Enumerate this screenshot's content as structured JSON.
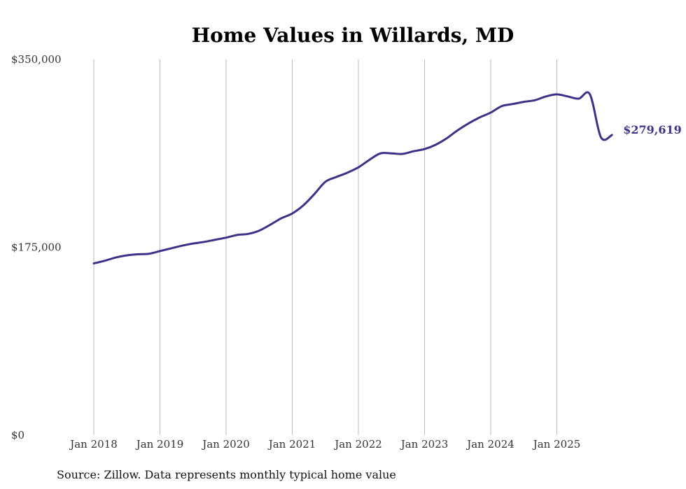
{
  "chart_data": {
    "type": "line",
    "title": "Home Values in Willards, MD",
    "xlabel": "",
    "ylabel": "",
    "ylim": [
      0,
      350000
    ],
    "grid": "vertical",
    "y_ticks": [
      {
        "value": 0,
        "label": "$0"
      },
      {
        "value": 175000,
        "label": "$175,000"
      },
      {
        "value": 350000,
        "label": "$350,000"
      }
    ],
    "x_ticks": [
      {
        "value": 2018,
        "label": "Jan 2018"
      },
      {
        "value": 2019,
        "label": "Jan 2019"
      },
      {
        "value": 2020,
        "label": "Jan 2020"
      },
      {
        "value": 2021,
        "label": "Jan 2021"
      },
      {
        "value": 2022,
        "label": "Jan 2022"
      },
      {
        "value": 2023,
        "label": "Jan 2023"
      },
      {
        "value": 2024,
        "label": "Jan 2024"
      },
      {
        "value": 2025,
        "label": "Jan 2025"
      }
    ],
    "xlim": [
      2018,
      2026
    ],
    "series": [
      {
        "name": "Typical home value",
        "color": "#3d3188",
        "x": [
          2018.0,
          2018.1667,
          2018.3333,
          2018.5,
          2018.6667,
          2018.8333,
          2019.0,
          2019.1667,
          2019.3333,
          2019.5,
          2019.6667,
          2019.8333,
          2020.0,
          2020.1667,
          2020.3333,
          2020.5,
          2020.6667,
          2020.8333,
          2021.0,
          2021.1667,
          2021.3333,
          2021.5,
          2021.6667,
          2021.8333,
          2022.0,
          2022.1667,
          2022.3333,
          2022.5,
          2022.6667,
          2022.8333,
          2023.0,
          2023.1667,
          2023.3333,
          2023.5,
          2023.6667,
          2023.8333,
          2024.0,
          2024.1667,
          2024.3333,
          2024.5,
          2024.6667,
          2024.8333,
          2025.0,
          2025.1667,
          2025.3333,
          2025.5,
          2025.6667,
          2025.8333
        ],
        "values": [
          160000,
          162500,
          165500,
          167500,
          168500,
          169000,
          171500,
          174000,
          176500,
          178500,
          180000,
          182000,
          184000,
          186500,
          187500,
          190500,
          196000,
          202000,
          206500,
          214000,
          224500,
          236000,
          240500,
          244500,
          249500,
          256500,
          262500,
          262500,
          262000,
          264500,
          266500,
          270500,
          276500,
          284000,
          290500,
          296000,
          300500,
          306500,
          308500,
          310500,
          312000,
          315500,
          317500,
          315500,
          313500,
          317500,
          277500,
          279619
        ]
      }
    ],
    "end_label": "$279,619"
  },
  "footer": {
    "source": "Source: Zillow. Data represents monthly typical home value"
  },
  "colors": {
    "line": "#3d3188",
    "grid": "#bbbbbb"
  }
}
